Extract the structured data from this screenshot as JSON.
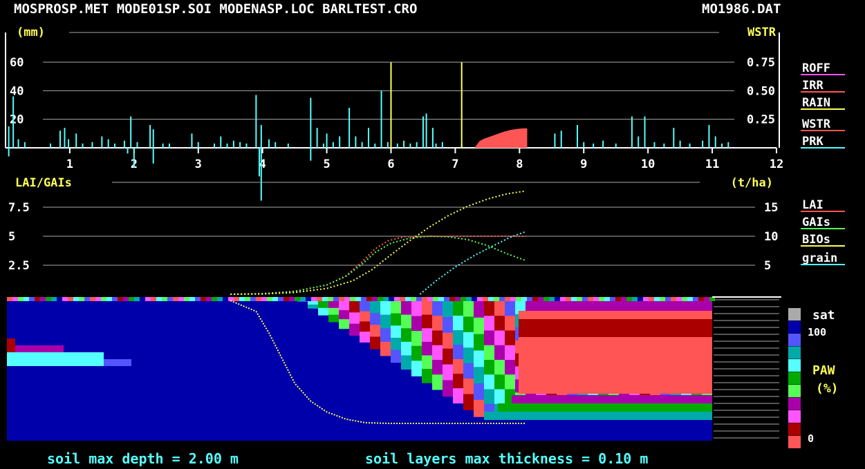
{
  "header": {
    "files": "MOSPROSP.MET MODE01SP.SOI MODENASP.LOC BARLTEST.CRO",
    "datafile": "MO1986.DAT"
  },
  "footer": {
    "depth": "soil max depth = 2.00 m",
    "thickness": "soil layers max thickness = 0.10 m"
  },
  "colors": {
    "rain": "#55ffff",
    "irr": "#ffff55",
    "roff": "#ff55ff",
    "wstr": "#ff5555",
    "lai": "#ff5555",
    "gais": "#55ff55",
    "bios": "#ffff55",
    "grain": "#55ffff",
    "axis_text": "#ffff55",
    "grid": "#aaaaaa"
  },
  "chart_data": [
    {
      "type": "bar",
      "panel": "water",
      "ylabel_left": "(mm)",
      "ylabel_right": "WSTR",
      "left_ticks": [
        "60",
        "40",
        "20"
      ],
      "right_ticks": [
        "0.75",
        "0.50",
        "0.25"
      ],
      "ylim_left": [
        0,
        60
      ],
      "ylim_right": [
        0,
        0.75
      ],
      "x_ticks": [
        "1",
        "2",
        "3",
        "4",
        "5",
        "6",
        "7",
        "8",
        "9",
        "10",
        "11",
        "12"
      ],
      "xlim": [
        0,
        12
      ],
      "legend": [
        "ROFF",
        "IRR",
        "RAIN",
        "WSTR",
        "PRK"
      ],
      "rain": [
        [
          0.05,
          15
        ],
        [
          0.12,
          36
        ],
        [
          0.2,
          6
        ],
        [
          0.3,
          4
        ],
        [
          0.7,
          3
        ],
        [
          0.85,
          12
        ],
        [
          0.92,
          14
        ],
        [
          0.98,
          6
        ],
        [
          1.1,
          10
        ],
        [
          1.2,
          3
        ],
        [
          1.35,
          4
        ],
        [
          1.5,
          8
        ],
        [
          1.6,
          6
        ],
        [
          1.7,
          3
        ],
        [
          1.85,
          5
        ],
        [
          1.95,
          22
        ],
        [
          2.05,
          4
        ],
        [
          2.25,
          16
        ],
        [
          2.3,
          13
        ],
        [
          2.45,
          3
        ],
        [
          2.55,
          3
        ],
        [
          2.9,
          10
        ],
        [
          3.0,
          4
        ],
        [
          3.25,
          3
        ],
        [
          3.35,
          8
        ],
        [
          3.45,
          3
        ],
        [
          3.55,
          5
        ],
        [
          3.65,
          4
        ],
        [
          3.75,
          3
        ],
        [
          3.9,
          37
        ],
        [
          3.98,
          16
        ],
        [
          4.1,
          6
        ],
        [
          4.2,
          4
        ],
        [
          4.4,
          3
        ],
        [
          4.75,
          35
        ],
        [
          4.85,
          14
        ],
        [
          4.95,
          3
        ],
        [
          5.0,
          10
        ],
        [
          5.1,
          4
        ],
        [
          5.2,
          8
        ],
        [
          5.35,
          28
        ],
        [
          5.45,
          8
        ],
        [
          5.55,
          4
        ],
        [
          5.65,
          14
        ],
        [
          5.75,
          3
        ],
        [
          5.85,
          40
        ],
        [
          5.95,
          4
        ],
        [
          6.1,
          3
        ],
        [
          6.2,
          5
        ],
        [
          6.3,
          3
        ],
        [
          6.4,
          4
        ],
        [
          6.5,
          22
        ],
        [
          6.55,
          24
        ],
        [
          6.65,
          14
        ],
        [
          6.7,
          3
        ],
        [
          6.8,
          4
        ],
        [
          7.1,
          3
        ],
        [
          8.55,
          10
        ],
        [
          8.65,
          12
        ],
        [
          8.9,
          16
        ],
        [
          9.0,
          4
        ],
        [
          9.15,
          3
        ],
        [
          9.3,
          5
        ],
        [
          9.5,
          3
        ],
        [
          9.75,
          22
        ],
        [
          9.85,
          8
        ],
        [
          9.95,
          22
        ],
        [
          10.1,
          4
        ],
        [
          10.25,
          3
        ],
        [
          10.4,
          14
        ],
        [
          10.5,
          5
        ],
        [
          10.65,
          3
        ],
        [
          10.85,
          5
        ],
        [
          10.95,
          16
        ],
        [
          11.05,
          8
        ],
        [
          11.15,
          3
        ],
        [
          11.25,
          4
        ]
      ],
      "irr": [
        [
          6.0,
          60
        ],
        [
          7.1,
          60
        ]
      ],
      "prk": [
        [
          0.05,
          6
        ],
        [
          1.9,
          4
        ],
        [
          2.0,
          14
        ],
        [
          2.3,
          11
        ],
        [
          3.95,
          20
        ],
        [
          3.98,
          37
        ],
        [
          4.75,
          9
        ]
      ],
      "wstr": [
        [
          7.3,
          0.0
        ],
        [
          7.38,
          0.06
        ],
        [
          7.45,
          0.08
        ],
        [
          7.55,
          0.1
        ],
        [
          7.65,
          0.12
        ],
        [
          7.75,
          0.14
        ],
        [
          7.85,
          0.155
        ],
        [
          7.95,
          0.165
        ],
        [
          8.05,
          0.17
        ],
        [
          8.12,
          0.17
        ],
        [
          8.12,
          0.0
        ]
      ]
    },
    {
      "type": "line",
      "panel": "crop",
      "ylabel_left": "LAI/GAIs",
      "ylabel_right": "(t/ha)",
      "left_ticks": [
        "7.5",
        "5",
        "2.5"
      ],
      "right_ticks": [
        "15",
        "10",
        "5"
      ],
      "ylim_left": [
        0,
        10
      ],
      "ylim_right": [
        0,
        20
      ],
      "xlim": [
        0,
        12
      ],
      "legend": [
        "LAI",
        "GAIs",
        "BIOs",
        "grain"
      ],
      "series": [
        {
          "name": "LAI",
          "key": "lai",
          "axis": "left",
          "points": [
            [
              3.5,
              0
            ],
            [
              4.0,
              0.05
            ],
            [
              4.5,
              0.25
            ],
            [
              5.0,
              0.8
            ],
            [
              5.3,
              1.6
            ],
            [
              5.55,
              2.8
            ],
            [
              5.75,
              3.9
            ],
            [
              5.95,
              4.6
            ],
            [
              6.2,
              4.95
            ],
            [
              6.5,
              5.0
            ],
            [
              7.0,
              5.0
            ],
            [
              8.0,
              5.0
            ],
            [
              8.1,
              5.0
            ]
          ]
        },
        {
          "name": "GAIs",
          "key": "gais",
          "axis": "left",
          "points": [
            [
              3.5,
              0
            ],
            [
              4.0,
              0.05
            ],
            [
              4.5,
              0.25
            ],
            [
              5.0,
              0.8
            ],
            [
              5.3,
              1.55
            ],
            [
              5.55,
              2.6
            ],
            [
              5.75,
              3.6
            ],
            [
              6.0,
              4.4
            ],
            [
              6.3,
              4.85
            ],
            [
              6.6,
              5.0
            ],
            [
              6.9,
              4.95
            ],
            [
              7.2,
              4.7
            ],
            [
              7.5,
              4.2
            ],
            [
              7.8,
              3.5
            ],
            [
              8.1,
              2.9
            ]
          ]
        },
        {
          "name": "BIOs",
          "key": "bios",
          "axis": "right",
          "points": [
            [
              3.5,
              0
            ],
            [
              4.0,
              0.05
            ],
            [
              4.5,
              0.3
            ],
            [
              5.0,
              1.0
            ],
            [
              5.4,
              2.3
            ],
            [
              5.7,
              4.2
            ],
            [
              6.0,
              6.8
            ],
            [
              6.3,
              9.3
            ],
            [
              6.6,
              11.6
            ],
            [
              6.9,
              13.6
            ],
            [
              7.2,
              15.2
            ],
            [
              7.5,
              16.4
            ],
            [
              7.8,
              17.3
            ],
            [
              8.1,
              17.8
            ]
          ]
        },
        {
          "name": "grain",
          "key": "grain",
          "axis": "right",
          "points": [
            [
              6.45,
              0
            ],
            [
              6.7,
              2.3
            ],
            [
              7.0,
              4.7
            ],
            [
              7.3,
              6.7
            ],
            [
              7.6,
              8.4
            ],
            [
              7.85,
              9.8
            ],
            [
              8.1,
              10.8
            ]
          ]
        }
      ]
    },
    {
      "type": "heatmap",
      "panel": "soil",
      "legend_title": "PAW",
      "legend_unit": "(%)",
      "legend_top": "sat",
      "legend_max": "100",
      "legend_min": "0",
      "palette": [
        "#ff5555",
        "#aa0000",
        "#ff55ff",
        "#aa00aa",
        "#55ff55",
        "#00aa00",
        "#55ffff",
        "#00aaaa",
        "#5555ff",
        "#0000aa",
        "#aaaaaa"
      ],
      "root_depth_curve": [
        [
          3.5,
          0.05
        ],
        [
          3.9,
          0.2
        ],
        [
          4.1,
          0.5
        ],
        [
          4.3,
          0.85
        ],
        [
          4.5,
          1.2
        ],
        [
          4.75,
          1.45
        ],
        [
          5.0,
          1.6
        ],
        [
          5.3,
          1.7
        ],
        [
          5.6,
          1.75
        ],
        [
          6.0,
          1.76
        ],
        [
          7.0,
          1.76
        ],
        [
          8.1,
          1.76
        ]
      ]
    }
  ]
}
